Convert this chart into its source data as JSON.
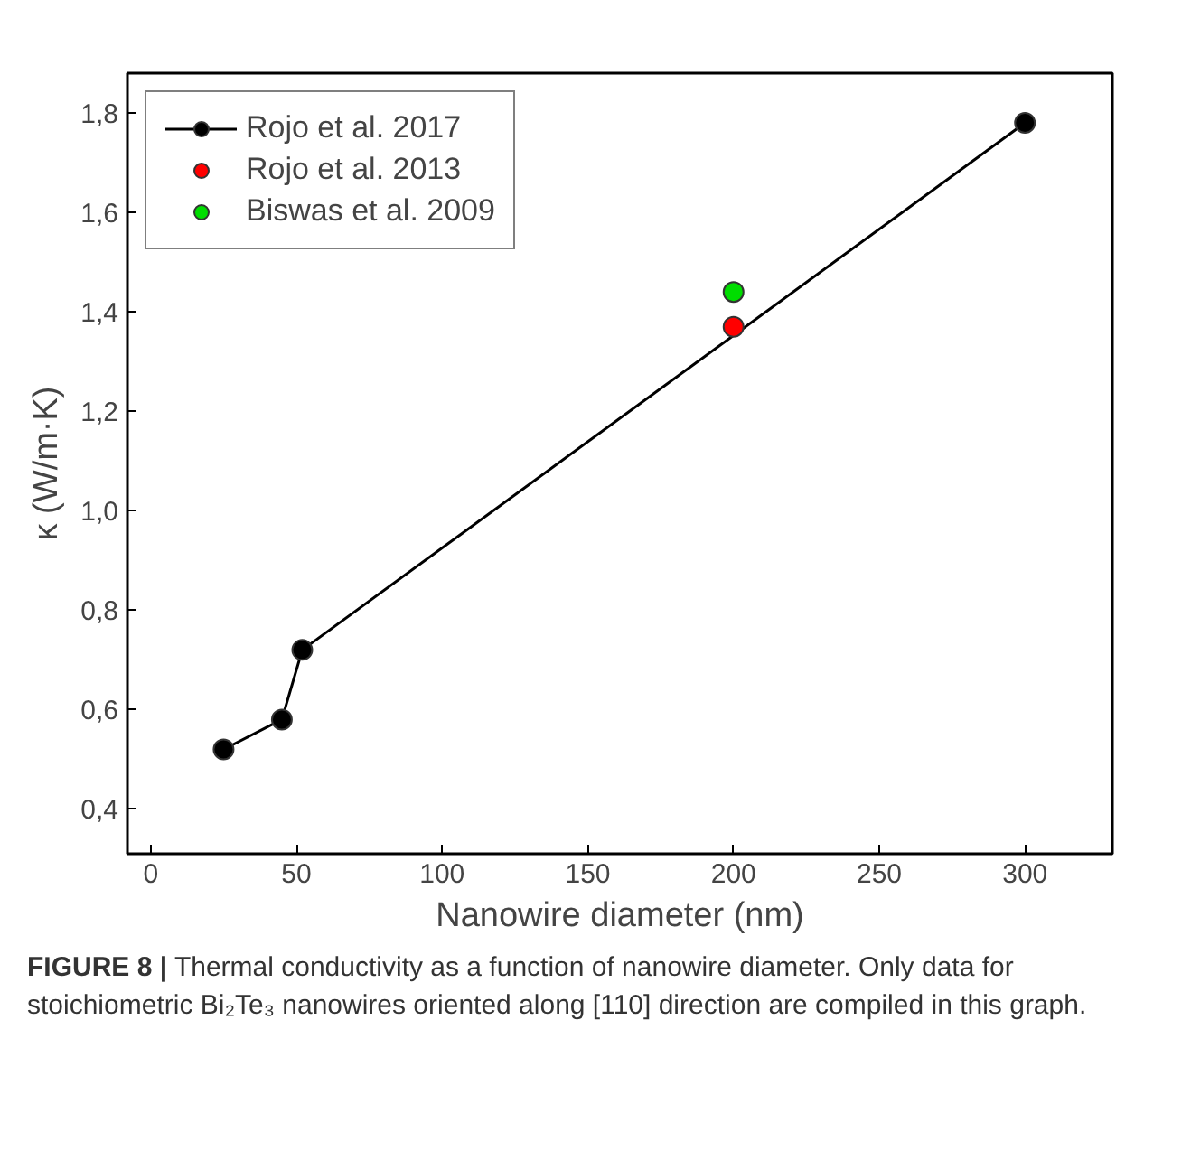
{
  "chart_data": {
    "type": "line",
    "xlabel": "Nanowire diameter (nm)",
    "ylabel": "κ (W/m·K)",
    "xlim": [
      -8,
      330
    ],
    "ylim": [
      0.31,
      1.88
    ],
    "xticks": [
      0,
      50,
      100,
      150,
      200,
      250,
      300
    ],
    "yticks": [
      {
        "value": 0.4,
        "label": "0,4"
      },
      {
        "value": 0.6,
        "label": "0,6"
      },
      {
        "value": 0.8,
        "label": "0,8"
      },
      {
        "value": 1.0,
        "label": "1,0"
      },
      {
        "value": 1.2,
        "label": "1,2"
      },
      {
        "value": 1.4,
        "label": "1,4"
      },
      {
        "value": 1.6,
        "label": "1,6"
      },
      {
        "value": 1.8,
        "label": "1,8"
      }
    ],
    "series": [
      {
        "name": "Rojo et al. 2017",
        "color": "#000000",
        "x": [
          25,
          45,
          52,
          300
        ],
        "values": [
          0.52,
          0.58,
          0.72,
          1.78
        ]
      },
      {
        "name": "Rojo et al. 2013",
        "color": "#ff0000",
        "type": "scatter",
        "x": [
          200
        ],
        "values": [
          1.37
        ]
      },
      {
        "name": "Biswas et al. 2009",
        "color": "#00dd00",
        "type": "scatter",
        "x": [
          200
        ],
        "values": [
          1.44
        ]
      }
    ],
    "marker": "circle",
    "grid": false,
    "legend": "top left",
    "annotations": [
      "FIGURE 8 | Thermal conductivity as a function of nanowire diameter. Only data for stoichiometric Bi₂Te₃ nanowires oriented along [110] direction are compiled in this graph."
    ]
  }
}
